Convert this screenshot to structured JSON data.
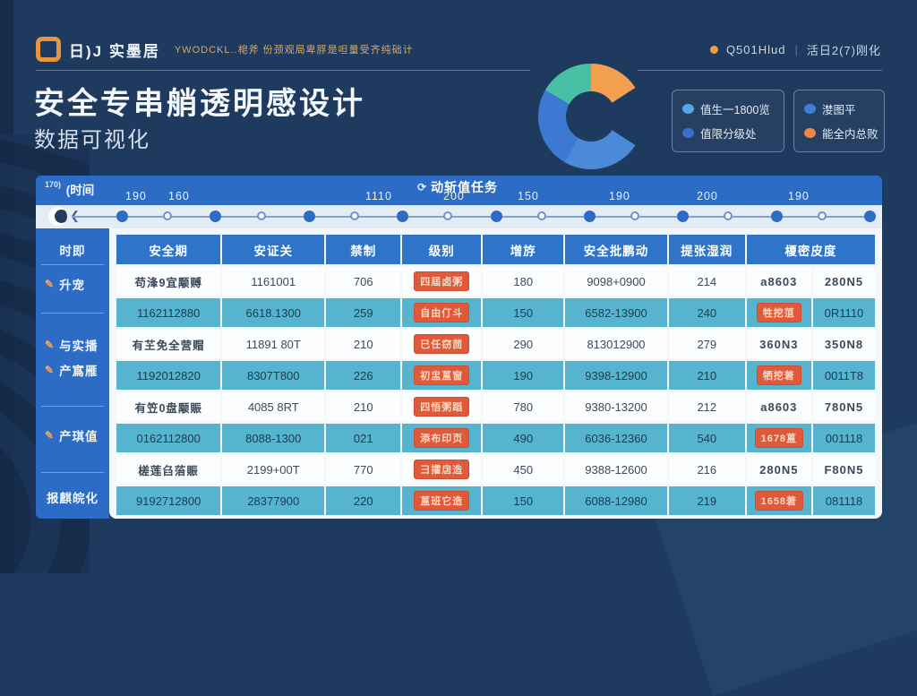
{
  "colors": {
    "background": "#1e3a5e",
    "accent_blue": "#2d6cc4",
    "table_header": "#2e74c9",
    "teal_row": "#57b4cf",
    "orange_text": "#e8923f",
    "badge_red": "#e0593a",
    "red_text": "#d84b33",
    "logo_orange": "#e8953f"
  },
  "header": {
    "logo_text": "日)J 实墨居",
    "tagline": "YWODCKL..梍斧 份颈观局卑脬是呾量受齐纯础计",
    "status_primary": "Q501Hlud",
    "status_separator": "|",
    "status_secondary": "活日2(7)刚化"
  },
  "hero": {
    "title": "安全专串艄透明感设计",
    "subtitle": "数据可视化"
  },
  "donut": {
    "segments": [
      {
        "name": "orange",
        "color": "#f29f50",
        "from": 0,
        "to": 57
      },
      {
        "name": "gap",
        "color": "transparent",
        "from": 57,
        "to": 123
      },
      {
        "name": "blue-light",
        "color": "#4b8ad8",
        "from": 123,
        "to": 210
      },
      {
        "name": "blue",
        "color": "#3c79d2",
        "from": 210,
        "to": 300
      },
      {
        "name": "teal",
        "color": "#49bfa4",
        "from": 300,
        "to": 360
      }
    ]
  },
  "legend": {
    "box1": [
      {
        "color": "#54a8e0",
        "label": "值生一1800览"
      },
      {
        "color": "#3a6fc9",
        "label": "值限分级处"
      }
    ],
    "box2": [
      {
        "color": "#3f7fd6",
        "label": "漤图平"
      },
      {
        "color": "#ee8748",
        "label": "能全内总败"
      }
    ]
  },
  "timeline": {
    "axis_label_prefix": "170)",
    "axis_label": "(时间",
    "center_label": "动斩值任务",
    "center_label_icon": "refresh-icon",
    "ticks": [
      "190",
      "160",
      "1110",
      "200",
      "150",
      "190",
      "200",
      "190"
    ],
    "dot_count": 17
  },
  "sidebar": {
    "items": [
      {
        "label": "时即",
        "icon": null
      },
      {
        "label": "升宠",
        "icon": "pencil-icon"
      },
      {
        "label": "与实播",
        "icon": "pencil-icon"
      },
      {
        "label": "产寪雁",
        "icon": "pencil-icon"
      },
      {
        "label": "产琪值",
        "icon": "pencil-icon"
      },
      {
        "label": "报麒皖化",
        "icon": null
      }
    ]
  },
  "table": {
    "headers": [
      {
        "label": "安全期",
        "span": 1
      },
      {
        "label": "安证关",
        "span": 1
      },
      {
        "label": "禁制",
        "span": 1
      },
      {
        "label": "级别",
        "span": 1
      },
      {
        "label": "增斿",
        "span": 1
      },
      {
        "label": "安全批鹏动",
        "span": 1
      },
      {
        "label": "提张湿润",
        "span": 1
      },
      {
        "label": "榎密皮度",
        "span": 2
      }
    ],
    "rows": [
      [
        {
          "k": "orange",
          "v": "苟浲9宜颙赙"
        },
        {
          "k": "num",
          "v": "1161001"
        },
        {
          "k": "num",
          "v": "706"
        },
        {
          "k": "badge",
          "v": "四屆卤粥"
        },
        {
          "k": "num",
          "v": "180"
        },
        {
          "k": "num",
          "v": "9098+0900"
        },
        {
          "k": "num",
          "v": "214"
        },
        {
          "k": "red",
          "v": "a8603"
        },
        {
          "k": "red",
          "v": "280N5"
        }
      ],
      [
        {
          "k": "num",
          "v": "1162112880"
        },
        {
          "k": "num",
          "v": "6618.1300"
        },
        {
          "k": "num",
          "v": "259"
        },
        {
          "k": "badge",
          "v": "自由仃斗"
        },
        {
          "k": "num",
          "v": "150"
        },
        {
          "k": "num",
          "v": "6582-13900"
        },
        {
          "k": "num",
          "v": "240"
        },
        {
          "k": "badge",
          "v": "牲挖菹"
        },
        {
          "k": "num",
          "v": "0R1110"
        }
      ],
      [
        {
          "k": "orange",
          "v": "有芏免全营赗"
        },
        {
          "k": "num",
          "v": "11891 80T"
        },
        {
          "k": "num",
          "v": "210"
        },
        {
          "k": "badge",
          "v": "已任窃茴"
        },
        {
          "k": "num",
          "v": "290"
        },
        {
          "k": "num",
          "v": "813012900"
        },
        {
          "k": "num",
          "v": "279"
        },
        {
          "k": "red",
          "v": "360N3"
        },
        {
          "k": "red",
          "v": "350N8"
        }
      ],
      [
        {
          "k": "num",
          "v": "1192012820"
        },
        {
          "k": "num",
          "v": "8307T800"
        },
        {
          "k": "num",
          "v": "226"
        },
        {
          "k": "badge",
          "v": "初盅蒕窗"
        },
        {
          "k": "num",
          "v": "190"
        },
        {
          "k": "num",
          "v": "9398-12900"
        },
        {
          "k": "num",
          "v": "210"
        },
        {
          "k": "badge",
          "v": "牺挖莙"
        },
        {
          "k": "num",
          "v": "0011T8"
        }
      ],
      [
        {
          "k": "orange",
          "v": "有笠0盘颙賑"
        },
        {
          "k": "num",
          "v": "4085 8RT"
        },
        {
          "k": "num",
          "v": "210"
        },
        {
          "k": "badge",
          "v": "四悟粥蹈"
        },
        {
          "k": "num",
          "v": "780"
        },
        {
          "k": "num",
          "v": "9380-13200"
        },
        {
          "k": "num",
          "v": "212"
        },
        {
          "k": "red",
          "v": "a8603"
        },
        {
          "k": "red",
          "v": "780N5"
        }
      ],
      [
        {
          "k": "num",
          "v": "0162112800"
        },
        {
          "k": "num",
          "v": "8088-1300"
        },
        {
          "k": "num",
          "v": "021"
        },
        {
          "k": "badge",
          "v": "添布印页"
        },
        {
          "k": "num",
          "v": "490"
        },
        {
          "k": "num",
          "v": "6036-12360"
        },
        {
          "k": "num",
          "v": "540"
        },
        {
          "k": "badge",
          "v": "1678蒕"
        },
        {
          "k": "num",
          "v": "001118"
        }
      ],
      [
        {
          "k": "orange",
          "v": "槎莲臽菭賑"
        },
        {
          "k": "num",
          "v": "2199+00T"
        },
        {
          "k": "num",
          "v": "770"
        },
        {
          "k": "badge",
          "v": "彐攉扂造"
        },
        {
          "k": "num",
          "v": "450"
        },
        {
          "k": "num",
          "v": "9388-12600"
        },
        {
          "k": "num",
          "v": "216"
        },
        {
          "k": "red",
          "v": "280N5"
        },
        {
          "k": "red",
          "v": "F80N5"
        }
      ],
      [
        {
          "k": "num",
          "v": "9192712800"
        },
        {
          "k": "num",
          "v": "28377900"
        },
        {
          "k": "num",
          "v": "220"
        },
        {
          "k": "badge",
          "v": "蒕班它造"
        },
        {
          "k": "num",
          "v": "150"
        },
        {
          "k": "num",
          "v": "6088-12980"
        },
        {
          "k": "num",
          "v": "219"
        },
        {
          "k": "badge",
          "v": "1658莙"
        },
        {
          "k": "num",
          "v": "081118"
        }
      ]
    ]
  }
}
